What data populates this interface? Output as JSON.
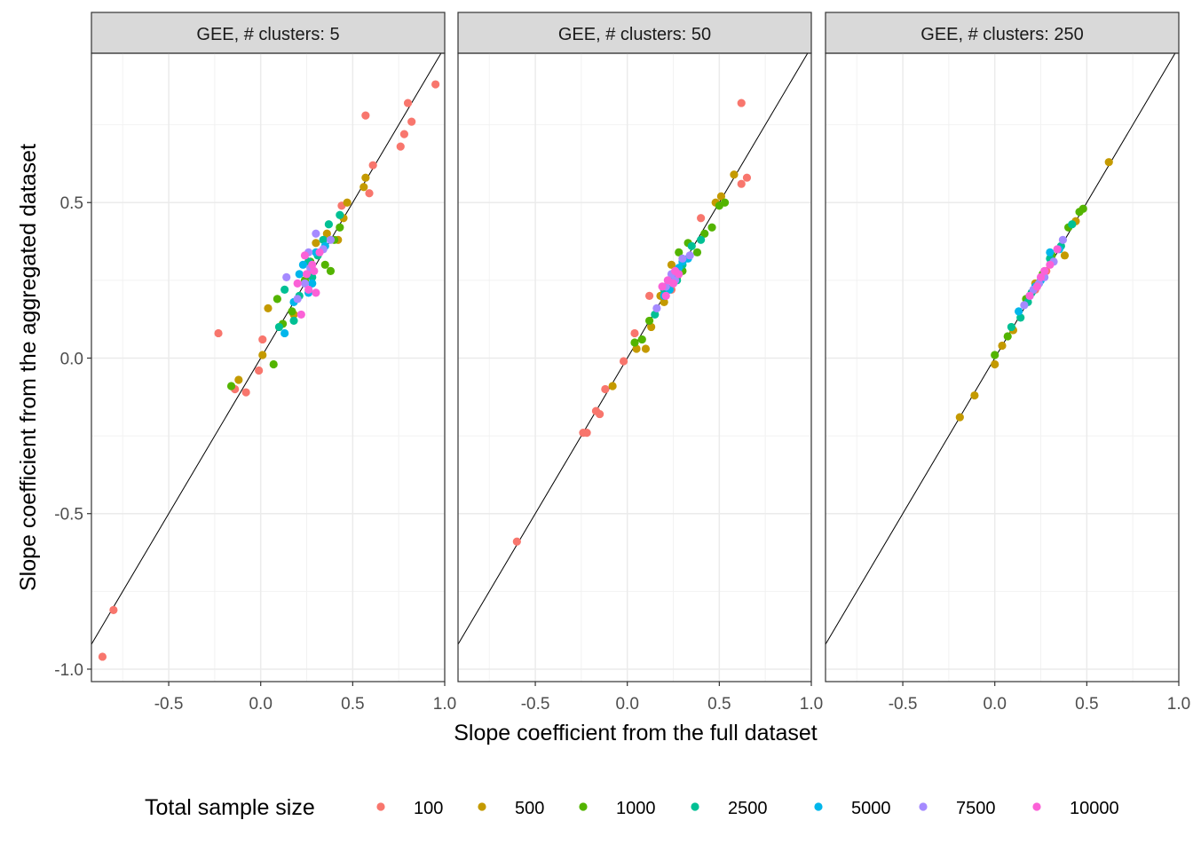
{
  "chart_data": {
    "type": "scatter",
    "xlabel": "Slope coefficient from the full dataset",
    "ylabel": "Slope coefficient from the aggregated dataset",
    "xlim": [
      -0.92,
      1.0
    ],
    "ylim": [
      -1.04,
      0.98
    ],
    "x_ticks": [
      -0.5,
      0.0,
      0.5,
      1.0
    ],
    "x_tick_labels": [
      "-0.5",
      "0.0",
      "0.5",
      "1.0"
    ],
    "y_ticks": [
      -1.0,
      -0.5,
      0.0,
      0.5
    ],
    "y_tick_labels": [
      "-1.0",
      "-0.5",
      "0.0",
      "0.5"
    ],
    "grid": true,
    "reference_line": "y = x",
    "legend": {
      "title": "Total sample size",
      "placement": "bottom",
      "entries": [
        "100",
        "500",
        "1000",
        "2500",
        "5000",
        "7500",
        "10000"
      ],
      "colors": [
        "#F8766D",
        "#C49A00",
        "#53B400",
        "#00C094",
        "#00B6EB",
        "#A58AFF",
        "#FB61D7"
      ]
    },
    "panels": [
      {
        "title": "GEE, # clusters: 5",
        "series": [
          {
            "name": "100",
            "points": [
              [
                -0.86,
                -0.96
              ],
              [
                -0.8,
                -0.81
              ],
              [
                -0.23,
                0.08
              ],
              [
                -0.14,
                -0.1
              ],
              [
                -0.08,
                -0.11
              ],
              [
                -0.01,
                -0.04
              ],
              [
                0.01,
                0.06
              ],
              [
                0.44,
                0.49
              ],
              [
                0.57,
                0.78
              ],
              [
                0.59,
                0.53
              ],
              [
                0.61,
                0.62
              ],
              [
                0.76,
                0.68
              ],
              [
                0.78,
                0.72
              ],
              [
                0.82,
                0.76
              ],
              [
                0.8,
                0.82
              ],
              [
                0.95,
                0.88
              ]
            ]
          },
          {
            "name": "500",
            "points": [
              [
                -0.12,
                -0.07
              ],
              [
                0.01,
                0.01
              ],
              [
                0.04,
                0.16
              ],
              [
                0.18,
                0.14
              ],
              [
                0.26,
                0.31
              ],
              [
                0.3,
                0.37
              ],
              [
                0.36,
                0.4
              ],
              [
                0.42,
                0.38
              ],
              [
                0.45,
                0.45
              ],
              [
                0.47,
                0.5
              ],
              [
                0.56,
                0.55
              ],
              [
                0.57,
                0.58
              ],
              [
                0.28,
                0.28
              ]
            ]
          },
          {
            "name": "1000",
            "points": [
              [
                -0.16,
                -0.09
              ],
              [
                0.07,
                -0.02
              ],
              [
                0.09,
                0.19
              ],
              [
                0.12,
                0.11
              ],
              [
                0.17,
                0.15
              ],
              [
                0.27,
                0.31
              ],
              [
                0.35,
                0.3
              ],
              [
                0.38,
                0.28
              ],
              [
                0.4,
                0.38
              ],
              [
                0.43,
                0.42
              ],
              [
                0.24,
                0.25
              ]
            ]
          },
          {
            "name": "2500",
            "points": [
              [
                0.1,
                0.1
              ],
              [
                0.13,
                0.22
              ],
              [
                0.18,
                0.12
              ],
              [
                0.21,
                0.2
              ],
              [
                0.26,
                0.31
              ],
              [
                0.34,
                0.38
              ],
              [
                0.37,
                0.43
              ],
              [
                0.43,
                0.46
              ],
              [
                0.31,
                0.33
              ],
              [
                0.28,
                0.26
              ]
            ]
          },
          {
            "name": "5000",
            "points": [
              [
                0.13,
                0.08
              ],
              [
                0.18,
                0.18
              ],
              [
                0.21,
                0.27
              ],
              [
                0.26,
                0.21
              ],
              [
                0.3,
                0.34
              ],
              [
                0.35,
                0.36
              ],
              [
                0.23,
                0.3
              ],
              [
                0.28,
                0.24
              ]
            ]
          },
          {
            "name": "7500",
            "points": [
              [
                0.14,
                0.26
              ],
              [
                0.2,
                0.19
              ],
              [
                0.26,
                0.34
              ],
              [
                0.3,
                0.4
              ],
              [
                0.34,
                0.35
              ],
              [
                0.38,
                0.38
              ],
              [
                0.24,
                0.24
              ],
              [
                0.27,
                0.29
              ]
            ]
          },
          {
            "name": "10000",
            "points": [
              [
                0.2,
                0.24
              ],
              [
                0.22,
                0.14
              ],
              [
                0.24,
                0.33
              ],
              [
                0.26,
                0.22
              ],
              [
                0.28,
                0.3
              ],
              [
                0.3,
                0.21
              ],
              [
                0.32,
                0.34
              ],
              [
                0.25,
                0.27
              ],
              [
                0.29,
                0.28
              ]
            ]
          }
        ]
      },
      {
        "title": "GEE, # clusters: 50",
        "series": [
          {
            "name": "100",
            "points": [
              [
                -0.6,
                -0.59
              ],
              [
                -0.24,
                -0.24
              ],
              [
                -0.22,
                -0.24
              ],
              [
                -0.17,
                -0.17
              ],
              [
                -0.15,
                -0.18
              ],
              [
                -0.12,
                -0.1
              ],
              [
                -0.02,
                -0.01
              ],
              [
                0.04,
                0.08
              ],
              [
                0.12,
                0.2
              ],
              [
                0.4,
                0.45
              ],
              [
                0.62,
                0.82
              ],
              [
                0.62,
                0.56
              ],
              [
                0.65,
                0.58
              ],
              [
                0.24,
                0.22
              ]
            ]
          },
          {
            "name": "500",
            "points": [
              [
                -0.08,
                -0.09
              ],
              [
                0.05,
                0.03
              ],
              [
                0.1,
                0.03
              ],
              [
                0.13,
                0.1
              ],
              [
                0.18,
                0.2
              ],
              [
                0.2,
                0.18
              ],
              [
                0.24,
                0.3
              ],
              [
                0.48,
                0.5
              ],
              [
                0.51,
                0.52
              ],
              [
                0.58,
                0.59
              ],
              [
                0.27,
                0.26
              ]
            ]
          },
          {
            "name": "1000",
            "points": [
              [
                0.04,
                0.05
              ],
              [
                0.08,
                0.06
              ],
              [
                0.12,
                0.12
              ],
              [
                0.28,
                0.34
              ],
              [
                0.33,
                0.37
              ],
              [
                0.38,
                0.34
              ],
              [
                0.42,
                0.4
              ],
              [
                0.46,
                0.42
              ],
              [
                0.5,
                0.49
              ],
              [
                0.53,
                0.5
              ],
              [
                0.3,
                0.28
              ]
            ]
          },
          {
            "name": "2500",
            "points": [
              [
                0.15,
                0.14
              ],
              [
                0.2,
                0.22
              ],
              [
                0.25,
                0.26
              ],
              [
                0.3,
                0.3
              ],
              [
                0.35,
                0.36
              ],
              [
                0.4,
                0.38
              ],
              [
                0.27,
                0.25
              ]
            ]
          },
          {
            "name": "5000",
            "points": [
              [
                0.2,
                0.2
              ],
              [
                0.25,
                0.26
              ],
              [
                0.3,
                0.31
              ],
              [
                0.33,
                0.32
              ],
              [
                0.23,
                0.22
              ],
              [
                0.28,
                0.29
              ]
            ]
          },
          {
            "name": "7500",
            "points": [
              [
                0.16,
                0.16
              ],
              [
                0.21,
                0.23
              ],
              [
                0.26,
                0.25
              ],
              [
                0.3,
                0.32
              ],
              [
                0.34,
                0.33
              ],
              [
                0.24,
                0.27
              ]
            ]
          },
          {
            "name": "10000",
            "points": [
              [
                0.19,
                0.23
              ],
              [
                0.22,
                0.25
              ],
              [
                0.25,
                0.24
              ],
              [
                0.28,
                0.27
              ],
              [
                0.21,
                0.2
              ],
              [
                0.26,
                0.28
              ]
            ]
          }
        ]
      },
      {
        "title": "GEE, # clusters: 250",
        "series": [
          {
            "name": "100",
            "points": [
              [
                0.22,
                0.22
              ],
              [
                0.28,
                0.28
              ]
            ]
          },
          {
            "name": "500",
            "points": [
              [
                -0.19,
                -0.19
              ],
              [
                -0.11,
                -0.12
              ],
              [
                0.0,
                -0.02
              ],
              [
                0.04,
                0.04
              ],
              [
                0.1,
                0.09
              ],
              [
                0.22,
                0.24
              ],
              [
                0.38,
                0.33
              ],
              [
                0.44,
                0.44
              ],
              [
                0.62,
                0.63
              ]
            ]
          },
          {
            "name": "1000",
            "points": [
              [
                0.0,
                0.01
              ],
              [
                0.07,
                0.07
              ],
              [
                0.17,
                0.19
              ],
              [
                0.31,
                0.33
              ],
              [
                0.4,
                0.42
              ],
              [
                0.46,
                0.47
              ],
              [
                0.48,
                0.48
              ],
              [
                0.26,
                0.27
              ]
            ]
          },
          {
            "name": "2500",
            "points": [
              [
                0.09,
                0.1
              ],
              [
                0.14,
                0.13
              ],
              [
                0.18,
                0.18
              ],
              [
                0.24,
                0.24
              ],
              [
                0.3,
                0.32
              ],
              [
                0.36,
                0.36
              ],
              [
                0.42,
                0.43
              ],
              [
                0.2,
                0.21
              ]
            ]
          },
          {
            "name": "5000",
            "points": [
              [
                0.13,
                0.15
              ],
              [
                0.19,
                0.2
              ],
              [
                0.25,
                0.25
              ],
              [
                0.3,
                0.34
              ],
              [
                0.35,
                0.35
              ],
              [
                0.22,
                0.23
              ]
            ]
          },
          {
            "name": "7500",
            "points": [
              [
                0.16,
                0.17
              ],
              [
                0.21,
                0.22
              ],
              [
                0.27,
                0.26
              ],
              [
                0.32,
                0.31
              ],
              [
                0.37,
                0.38
              ],
              [
                0.24,
                0.24
              ]
            ]
          },
          {
            "name": "10000",
            "points": [
              [
                0.19,
                0.2
              ],
              [
                0.23,
                0.23
              ],
              [
                0.27,
                0.28
              ],
              [
                0.3,
                0.3
              ],
              [
                0.34,
                0.35
              ],
              [
                0.25,
                0.26
              ]
            ]
          }
        ]
      }
    ]
  }
}
